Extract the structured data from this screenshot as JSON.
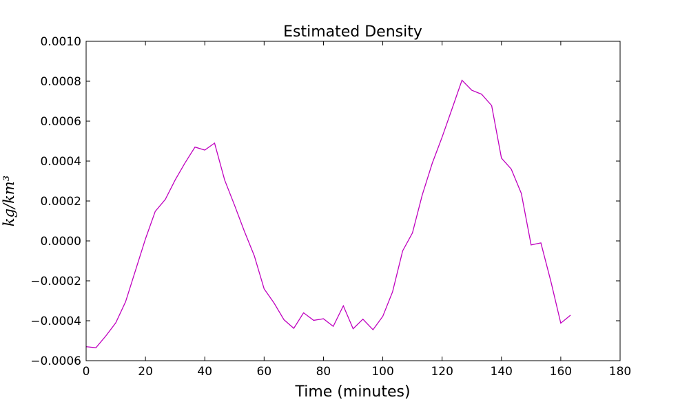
{
  "chart_data": {
    "type": "line",
    "title": "Estimated Density",
    "xlabel": "Time (minutes)",
    "ylabel": "kg/km³",
    "xlim": [
      0,
      180
    ],
    "ylim": [
      -0.0006,
      0.001
    ],
    "x_ticks": [
      0,
      20,
      40,
      60,
      80,
      100,
      120,
      140,
      160,
      180
    ],
    "y_ticks": [
      -0.0006,
      -0.0004,
      -0.0002,
      0.0,
      0.0002,
      0.0004,
      0.0006,
      0.0008,
      0.001
    ],
    "x_tick_labels": [
      "0",
      "20",
      "40",
      "60",
      "80",
      "100",
      "120",
      "140",
      "160",
      "180"
    ],
    "y_tick_labels": [
      "−0.0006",
      "−0.0004",
      "−0.0002",
      "0.0000",
      "0.0002",
      "0.0004",
      "0.0006",
      "0.0008",
      "0.0010"
    ],
    "grid": false,
    "series": [
      {
        "color": "#bf00bf",
        "x": [
          0,
          3.3,
          6.7,
          10,
          13.3,
          16.7,
          20,
          23.3,
          26.7,
          30,
          33.3,
          36.7,
          40,
          43.3,
          46.7,
          50,
          53.3,
          56.7,
          60,
          63.3,
          66.7,
          70,
          73.3,
          76.7,
          80,
          83.3,
          86.7,
          90,
          93.3,
          96.7,
          100,
          103.3,
          106.7,
          110,
          113.3,
          116.7,
          120,
          123.3,
          126.7,
          130,
          133.3,
          136.7,
          140,
          143.3,
          146.7,
          150,
          153.3,
          156.7,
          160,
          163.3
        ],
        "y": [
          -0.00053,
          -0.000535,
          -0.000475,
          -0.00041,
          -0.000305,
          -0.000145,
          1e-05,
          0.000148,
          0.000208,
          0.000305,
          0.00039,
          0.00047,
          0.000455,
          0.00049,
          0.000305,
          0.00018,
          5e-05,
          -7.5e-05,
          -0.00024,
          -0.00031,
          -0.000395,
          -0.000438,
          -0.00036,
          -0.000398,
          -0.00039,
          -0.000428,
          -0.000325,
          -0.00044,
          -0.000392,
          -0.000445,
          -0.000378,
          -0.000255,
          -5e-05,
          4e-05,
          0.00023,
          0.00039,
          0.00052,
          0.00066,
          0.000805,
          0.000755,
          0.000735,
          0.000678,
          0.000415,
          0.00036,
          0.000238,
          -2e-05,
          -1e-05,
          -0.000205,
          -0.000412,
          -0.000372
        ]
      }
    ]
  }
}
